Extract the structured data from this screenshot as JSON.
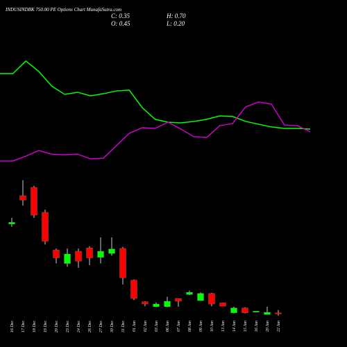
{
  "chart_data": {
    "type": "candlestick",
    "title": "INDUSINDBK 750.00  PE Options Chart MunafaSutra.com",
    "stats": [
      "C: 0.35",
      "H: 0.70",
      "O: 0.45",
      "L: 0.20"
    ],
    "categories": [
      "16 Dec",
      "17 Dec",
      "18 Dec",
      "19 Dec",
      "20 Dec",
      "23 Dec",
      "24 Dec",
      "26 Dec",
      "27 Dec",
      "30 Dec",
      "31 Dec",
      "01 Jan",
      "02 Jan",
      "03 Jan",
      "06 Jan",
      "07 Jan",
      "08 Jan",
      "09 Jan",
      "10 Jan",
      "13 Jan",
      "14 Jan",
      "15 Jan",
      "16 Jan",
      "20 Jan",
      "22 Jan"
    ],
    "open": [
      8.45,
      11.0,
      11.75,
      9.5,
      6.1,
      4.9,
      6.0,
      6.3,
      5.45,
      5.8,
      6.25,
      3.4,
      1.45,
      1.0,
      1.0,
      1.75,
      2.1,
      1.55,
      2.2,
      1.35,
      0.45,
      0.9,
      0.55,
      0.3,
      0.45
    ],
    "high": [
      9.0,
      12.4,
      11.9,
      9.75,
      6.25,
      6.25,
      6.25,
      6.45,
      7.25,
      7.25,
      6.4,
      3.45,
      1.5,
      1.4,
      1.9,
      1.75,
      2.45,
      2.3,
      2.25,
      1.35,
      1.0,
      0.95,
      0.6,
      1.0,
      0.7
    ],
    "low": [
      8.2,
      10.1,
      9.0,
      6.6,
      4.9,
      4.6,
      4.5,
      4.75,
      4.9,
      5.6,
      3.0,
      1.6,
      1.05,
      0.95,
      0.95,
      1.0,
      2.05,
      1.55,
      1.05,
      1.05,
      0.4,
      0.4,
      0.55,
      0.3,
      0.2
    ],
    "close": [
      8.6,
      10.6,
      9.25,
      6.9,
      5.4,
      5.75,
      5.1,
      5.4,
      6.0,
      6.2,
      3.6,
      1.75,
      1.25,
      1.25,
      1.5,
      1.5,
      2.3,
      2.2,
      1.25,
      1.05,
      0.9,
      0.45,
      0.6,
      0.5,
      0.35
    ],
    "up_color": "#00ff00",
    "down_color": "#ff0000",
    "ylim": [
      0,
      13
    ],
    "y2lim": [
      0,
      100
    ],
    "series": [
      {
        "color": "#00ff00",
        "axis": "y2",
        "values": [
          75.8,
          75.8,
          85.3,
          77.4,
          66.3,
          60,
          61.6,
          58.9,
          60.5,
          62.6,
          63.2,
          50,
          41.1,
          38.9,
          38.4,
          39.5,
          41.1,
          43.7,
          43.2,
          39.5,
          37.4,
          35.3,
          34.2,
          34.2,
          33.7
        ]
      },
      {
        "color": "#cc00cc",
        "axis": "y2",
        "values": [
          9.5,
          9.5,
          13.2,
          17.4,
          14.7,
          14.2,
          14.7,
          11.1,
          11.6,
          21.1,
          30.5,
          34.7,
          34.2,
          38.9,
          33.7,
          27.9,
          27.4,
          36.3,
          37.9,
          50.5,
          54.2,
          52.6,
          36.8,
          36.3,
          31.6
        ]
      }
    ]
  }
}
